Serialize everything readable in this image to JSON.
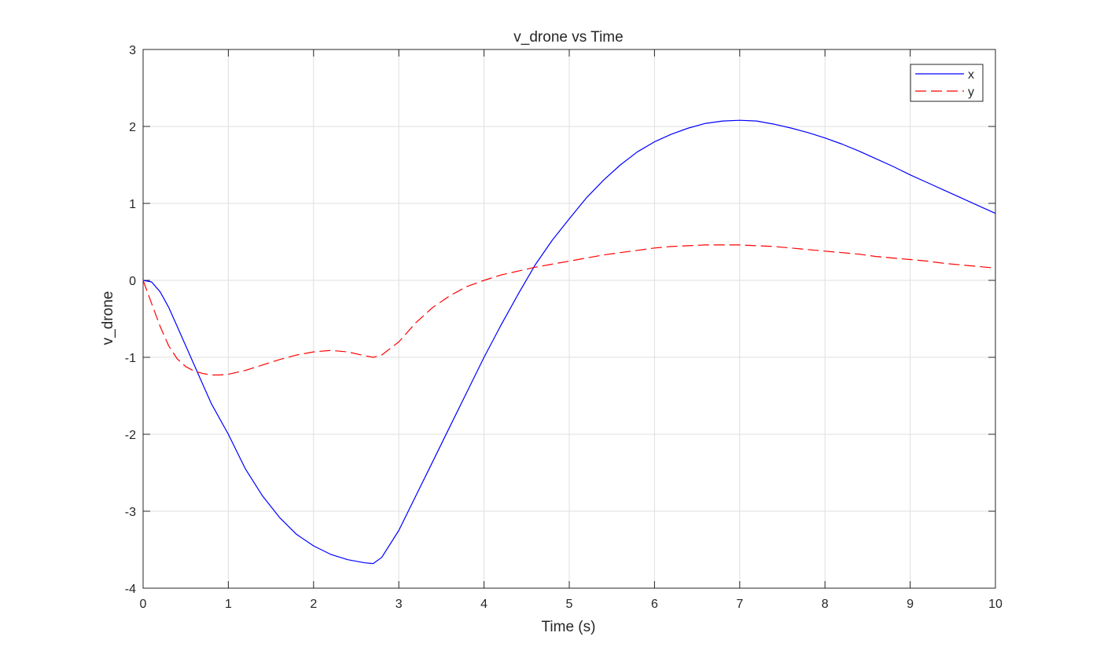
{
  "chart_data": {
    "type": "line",
    "title": "v_drone vs Time",
    "xlabel": "Time (s)",
    "ylabel": "v_drone",
    "xlim": [
      0,
      10
    ],
    "ylim": [
      -4,
      3
    ],
    "xticks": [
      0,
      1,
      2,
      3,
      4,
      5,
      6,
      7,
      8,
      9,
      10
    ],
    "yticks": [
      -4,
      -3,
      -2,
      -1,
      0,
      1,
      2,
      3
    ],
    "grid": true,
    "legend_position": "top-right",
    "series": [
      {
        "name": "x",
        "color": "#0000ff",
        "style": "solid",
        "x": [
          0,
          0.1,
          0.2,
          0.3,
          0.4,
          0.5,
          0.6,
          0.8,
          1.0,
          1.2,
          1.4,
          1.6,
          1.8,
          2.0,
          2.2,
          2.4,
          2.6,
          2.7,
          2.8,
          3.0,
          3.2,
          3.4,
          3.6,
          3.8,
          4.0,
          4.2,
          4.4,
          4.6,
          4.8,
          5.0,
          5.2,
          5.4,
          5.6,
          5.8,
          6.0,
          6.2,
          6.4,
          6.6,
          6.8,
          7.0,
          7.2,
          7.4,
          7.6,
          7.8,
          8.0,
          8.2,
          8.4,
          8.6,
          8.8,
          9.0,
          9.2,
          9.4,
          9.6,
          9.8,
          10.0
        ],
        "y": [
          0,
          -0.02,
          -0.15,
          -0.35,
          -0.6,
          -0.85,
          -1.1,
          -1.6,
          -2.0,
          -2.45,
          -2.8,
          -3.08,
          -3.3,
          -3.45,
          -3.56,
          -3.63,
          -3.67,
          -3.68,
          -3.6,
          -3.25,
          -2.8,
          -2.35,
          -1.9,
          -1.45,
          -1.0,
          -0.58,
          -0.18,
          0.2,
          0.52,
          0.8,
          1.07,
          1.3,
          1.5,
          1.67,
          1.8,
          1.9,
          1.98,
          2.04,
          2.07,
          2.08,
          2.07,
          2.03,
          1.98,
          1.92,
          1.85,
          1.77,
          1.68,
          1.58,
          1.48,
          1.37,
          1.27,
          1.17,
          1.07,
          0.97,
          0.87
        ]
      },
      {
        "name": "y",
        "color": "#ff0000",
        "style": "dashed",
        "x": [
          0,
          0.1,
          0.2,
          0.3,
          0.4,
          0.5,
          0.6,
          0.7,
          0.8,
          0.9,
          1.0,
          1.2,
          1.4,
          1.6,
          1.8,
          2.0,
          2.2,
          2.4,
          2.6,
          2.7,
          2.8,
          3.0,
          3.2,
          3.4,
          3.6,
          3.8,
          4.0,
          4.2,
          4.4,
          4.6,
          4.8,
          5.0,
          5.2,
          5.4,
          5.6,
          5.8,
          6.0,
          6.2,
          6.4,
          6.6,
          6.8,
          7.0,
          7.2,
          7.4,
          7.6,
          7.8,
          8.0,
          8.2,
          8.4,
          8.6,
          8.8,
          9.0,
          9.2,
          9.4,
          9.6,
          9.8,
          10.0
        ],
        "y": [
          0,
          -0.3,
          -0.6,
          -0.85,
          -1.02,
          -1.12,
          -1.18,
          -1.21,
          -1.23,
          -1.23,
          -1.22,
          -1.17,
          -1.1,
          -1.03,
          -0.97,
          -0.93,
          -0.91,
          -0.93,
          -0.98,
          -1.0,
          -0.97,
          -0.8,
          -0.55,
          -0.35,
          -0.2,
          -0.08,
          0.0,
          0.07,
          0.12,
          0.17,
          0.21,
          0.25,
          0.29,
          0.33,
          0.36,
          0.39,
          0.42,
          0.44,
          0.45,
          0.46,
          0.46,
          0.46,
          0.45,
          0.44,
          0.42,
          0.4,
          0.38,
          0.36,
          0.34,
          0.31,
          0.29,
          0.27,
          0.25,
          0.22,
          0.2,
          0.18,
          0.16
        ]
      }
    ]
  }
}
